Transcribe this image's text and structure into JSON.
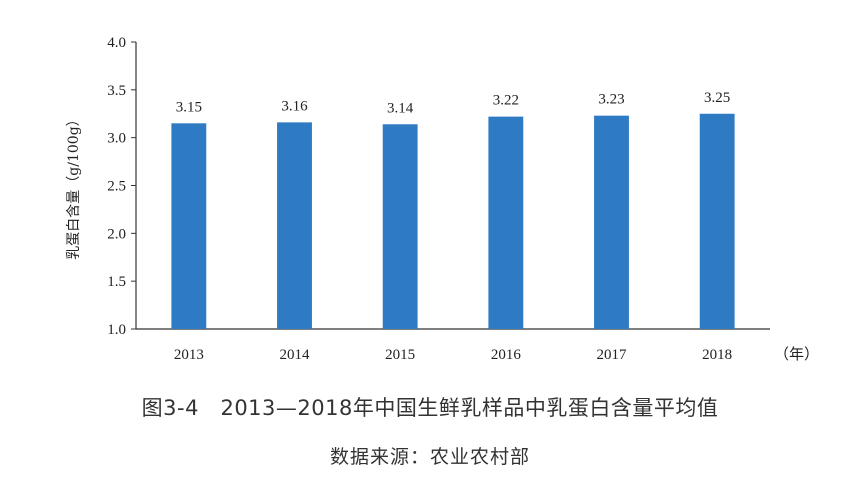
{
  "chart_data": {
    "type": "bar",
    "categories": [
      "2013",
      "2014",
      "2015",
      "2016",
      "2017",
      "2018"
    ],
    "values": [
      3.15,
      3.16,
      3.14,
      3.22,
      3.23,
      3.25
    ],
    "data_labels": [
      "3.15",
      "3.16",
      "3.14",
      "3.22",
      "3.23",
      "3.25"
    ],
    "ylabel": "乳蛋白含量（g/100g）",
    "x_unit": "（年）",
    "ylim": [
      1.0,
      4.0
    ],
    "yticks": [
      "1.0",
      "1.5",
      "2.0",
      "2.5",
      "3.0",
      "3.5",
      "4.0"
    ],
    "grid": false,
    "legend": "none",
    "bar_color": "#2E7BC4"
  },
  "caption": {
    "title": "图3-4　2013—2018年中国生鲜乳样品中乳蛋白含量平均值",
    "source": "数据来源：农业农村部"
  }
}
